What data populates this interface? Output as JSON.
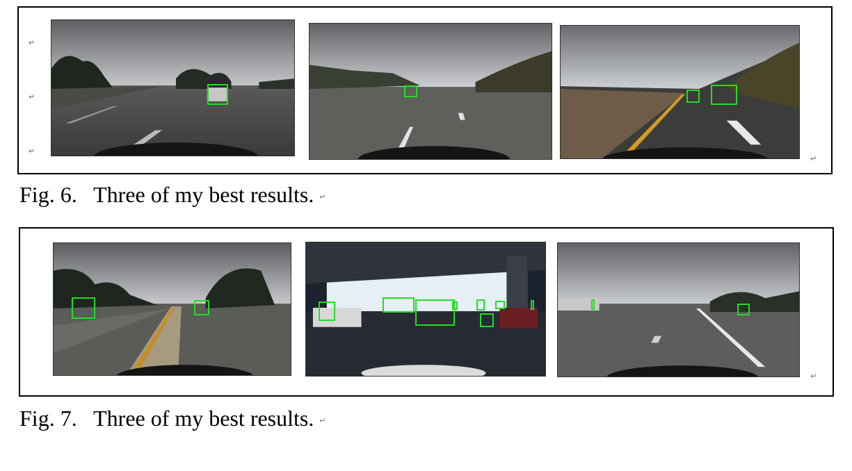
{
  "figures": [
    {
      "caption": "Fig. 6.   Three of my best results.",
      "paragraph_mark": "↵"
    },
    {
      "caption": "Fig. 7.   Three of my best results.",
      "paragraph_mark": "↵"
    }
  ],
  "paragraph_mark": "↵",
  "colors": {
    "detection_box": "#1fe01f",
    "border": "#000000"
  }
}
